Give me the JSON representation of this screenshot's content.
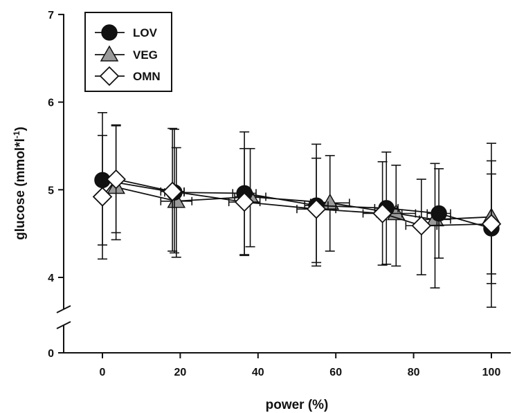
{
  "chart_data": {
    "type": "line",
    "title": "",
    "xlabel": "power (%)",
    "ylabel": "glucose (mmol*l",
    "ylabel_sup": "-1",
    "ylabel_close": ")",
    "xlim": [
      -10,
      110
    ],
    "ylim_upper": [
      3.3,
      7
    ],
    "axis_break": true,
    "x_ticks": [
      0,
      20,
      40,
      60,
      80,
      100
    ],
    "y_ticks": [
      4,
      5,
      6,
      7
    ],
    "y_zero_label": "0",
    "legend_position": "top-left",
    "grid": false,
    "series": [
      {
        "name": "LOV",
        "marker": "circle",
        "fill": "#111111",
        "points": [
          {
            "x": 0,
            "y": 5.11,
            "ylo": 4.37,
            "yhi": 5.88,
            "xerr": 0
          },
          {
            "x": 18.5,
            "y": 4.97,
            "ylo": 4.28,
            "yhi": 5.69,
            "xerr": 2.5
          },
          {
            "x": 36.5,
            "y": 4.96,
            "ylo": 4.26,
            "yhi": 5.66,
            "xerr": 3
          },
          {
            "x": 55,
            "y": 4.82,
            "ylo": 4.13,
            "yhi": 5.52,
            "xerr": 3
          },
          {
            "x": 73,
            "y": 4.79,
            "ylo": 4.15,
            "yhi": 5.43,
            "xerr": 3
          },
          {
            "x": 86.5,
            "y": 4.73,
            "ylo": 4.22,
            "yhi": 5.24,
            "xerr": 3
          },
          {
            "x": 100,
            "y": 4.56,
            "ylo": 3.66,
            "yhi": 5.53,
            "xerr": 0
          }
        ]
      },
      {
        "name": "VEG",
        "marker": "triangle",
        "fill": "#9a9a9a",
        "points": [
          {
            "x": 3.5,
            "y": 5.03,
            "ylo": 4.43,
            "yhi": 5.73,
            "xerr": 0
          },
          {
            "x": 19,
            "y": 4.87,
            "ylo": 4.23,
            "yhi": 5.48,
            "xerr": 4
          },
          {
            "x": 38,
            "y": 4.92,
            "ylo": 4.35,
            "yhi": 5.47,
            "xerr": 4
          },
          {
            "x": 58.5,
            "y": 4.85,
            "ylo": 4.3,
            "yhi": 5.39,
            "xerr": 5
          },
          {
            "x": 75.5,
            "y": 4.73,
            "ylo": 4.13,
            "yhi": 5.28,
            "xerr": 5
          },
          {
            "x": 85.5,
            "y": 4.66,
            "ylo": 3.88,
            "yhi": 5.3,
            "xerr": 4
          },
          {
            "x": 100,
            "y": 4.69,
            "ylo": 3.93,
            "yhi": 5.33,
            "xerr": 0
          }
        ]
      },
      {
        "name": "OMN",
        "marker": "diamond",
        "fill": "#ffffff",
        "points": [
          {
            "x": 0,
            "y": 4.92,
            "ylo": 4.21,
            "yhi": 5.62,
            "xerr": 0
          },
          {
            "x": 3.5,
            "y": 5.12,
            "ylo": 4.51,
            "yhi": 5.74,
            "xerr": 0
          },
          {
            "x": 18,
            "y": 4.98,
            "ylo": 4.3,
            "yhi": 5.7,
            "xerr": 3
          },
          {
            "x": 36.5,
            "y": 4.86,
            "ylo": 4.25,
            "yhi": 5.47,
            "xerr": 4
          },
          {
            "x": 55,
            "y": 4.78,
            "ylo": 4.17,
            "yhi": 5.36,
            "xerr": 5
          },
          {
            "x": 72,
            "y": 4.73,
            "ylo": 4.14,
            "yhi": 5.32,
            "xerr": 5
          },
          {
            "x": 82,
            "y": 4.59,
            "ylo": 4.03,
            "yhi": 5.12,
            "xerr": 4
          },
          {
            "x": 100,
            "y": 4.61,
            "ylo": 4.04,
            "yhi": 5.18,
            "xerr": 0
          }
        ]
      }
    ]
  }
}
